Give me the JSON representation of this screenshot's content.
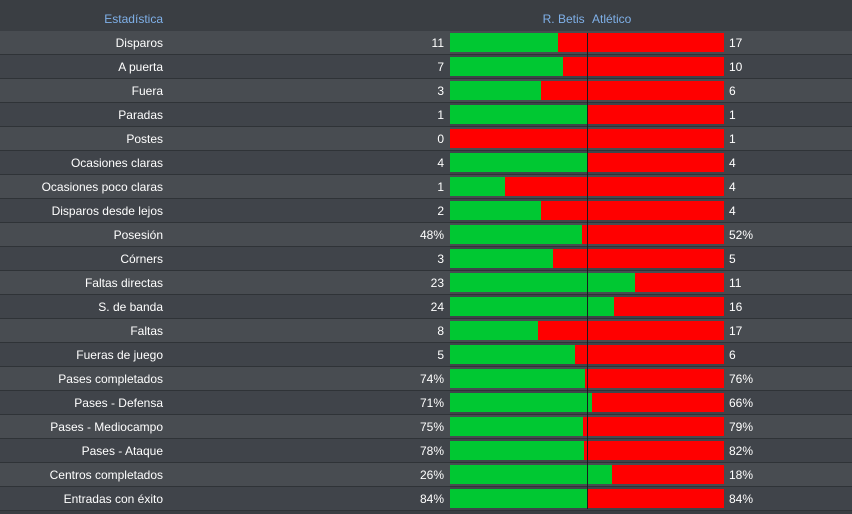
{
  "header": {
    "stat_label": "Estadística",
    "home_team": "R. Betis",
    "away_team": "Atlético"
  },
  "colors": {
    "home_bar": "#00c832",
    "away_bar": "#ff0000",
    "header_text": "#7fb0e8"
  },
  "stats": [
    {
      "label": "Disparos",
      "home": "11",
      "away": "17",
      "home_fraction": 0.393
    },
    {
      "label": "A puerta",
      "home": "7",
      "away": "10",
      "home_fraction": 0.412
    },
    {
      "label": "Fuera",
      "home": "3",
      "away": "6",
      "home_fraction": 0.333
    },
    {
      "label": "Paradas",
      "home": "1",
      "away": "1",
      "home_fraction": 0.5
    },
    {
      "label": "Postes",
      "home": "0",
      "away": "1",
      "home_fraction": 0.0
    },
    {
      "label": "Ocasiones claras",
      "home": "4",
      "away": "4",
      "home_fraction": 0.5
    },
    {
      "label": "Ocasiones poco claras",
      "home": "1",
      "away": "4",
      "home_fraction": 0.2
    },
    {
      "label": "Disparos desde lejos",
      "home": "2",
      "away": "4",
      "home_fraction": 0.333
    },
    {
      "label": "Posesión",
      "home": "48%",
      "away": "52%",
      "home_fraction": 0.48
    },
    {
      "label": "Córners",
      "home": "3",
      "away": "5",
      "home_fraction": 0.375
    },
    {
      "label": "Faltas directas",
      "home": "23",
      "away": "11",
      "home_fraction": 0.676
    },
    {
      "label": "S. de banda",
      "home": "24",
      "away": "16",
      "home_fraction": 0.6
    },
    {
      "label": "Faltas",
      "home": "8",
      "away": "17",
      "home_fraction": 0.32
    },
    {
      "label": "Fueras de juego",
      "home": "5",
      "away": "6",
      "home_fraction": 0.455
    },
    {
      "label": "Pases completados",
      "home": "74%",
      "away": "76%",
      "home_fraction": 0.493
    },
    {
      "label": "Pases - Defensa",
      "home": "71%",
      "away": "66%",
      "home_fraction": 0.518
    },
    {
      "label": "Pases - Mediocampo",
      "home": "75%",
      "away": "79%",
      "home_fraction": 0.487
    },
    {
      "label": "Pases - Ataque",
      "home": "78%",
      "away": "82%",
      "home_fraction": 0.488
    },
    {
      "label": "Centros completados",
      "home": "26%",
      "away": "18%",
      "home_fraction": 0.591
    },
    {
      "label": "Entradas con éxito",
      "home": "84%",
      "away": "84%",
      "home_fraction": 0.5
    }
  ]
}
